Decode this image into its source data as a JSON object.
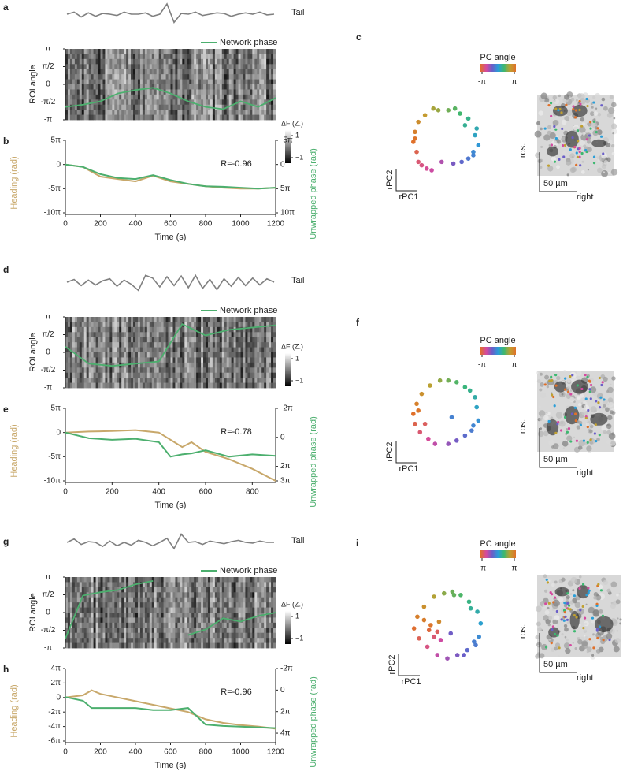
{
  "panel_labels": [
    "a",
    "b",
    "c",
    "d",
    "e",
    "f",
    "g",
    "h",
    "i"
  ],
  "images": [
    {
      "rostral": "ros.",
      "scale": "50 µm",
      "right": "right"
    },
    {
      "rostral": "ros.",
      "scale": "50 µm",
      "right": "right"
    },
    {
      "rostral": "ros.",
      "scale": "50 µm",
      "right": "right"
    }
  ],
  "chart_data": [
    {
      "type": "trace",
      "label": "Tail",
      "color": "#808080",
      "ylim": [
        -1.5,
        1.5
      ],
      "values": [
        0,
        0.3,
        -0.4,
        0.2,
        -0.3,
        0.1,
        0,
        -0.2,
        0.3,
        0,
        0,
        0.2,
        -0.3,
        0,
        1.5,
        -1.2,
        0.1,
        0,
        0.3,
        -0.2,
        0,
        0.2,
        0.1,
        -0.3,
        0,
        0.2,
        0,
        0.3,
        -0.1,
        0
      ]
    },
    {
      "type": "heatmap",
      "ylabel": "ROI angle",
      "legend": "Network phase",
      "phase_color": "#4caf6e",
      "ylim": [
        -3.1416,
        3.1416
      ],
      "yticks": [
        {
          "value": 3.1416,
          "label": "π"
        },
        {
          "value": 1.5708,
          "label": "π/2"
        },
        0,
        {
          "value": -1.5708,
          "label": "-π/2"
        },
        {
          "value": -3.1416,
          "label": "-π"
        }
      ],
      "x": [
        0,
        100,
        200,
        300,
        400,
        500,
        600,
        700,
        800,
        900,
        1000,
        1100,
        1200
      ],
      "phase": [
        -2.0,
        -1.8,
        -1.5,
        -0.8,
        -0.5,
        -0.3,
        -0.8,
        -1.5,
        -2.0,
        -2.2,
        -1.5,
        -2.0,
        -1.2
      ],
      "colorbar_label": "ΔF (Z.)",
      "clim": [
        -1.5,
        1.5
      ],
      "colorbar_ticks": [
        1,
        {
          "value": -1,
          "label": "−1"
        }
      ]
    },
    {
      "type": "line",
      "xlabel": "Time (s)",
      "ylabel": "Heading (rad)",
      "y2label": "Unwrapped phase (rad)",
      "annotation": "R=-0.96",
      "xlim": [
        0,
        1200
      ],
      "xticks": [
        0,
        200,
        400,
        600,
        800,
        1000,
        1200
      ],
      "ylim": [
        -31.416,
        15.708
      ],
      "yticks": [
        {
          "value": 15.708,
          "label": "5π"
        },
        0,
        {
          "value": -15.708,
          "label": "-5π"
        },
        {
          "value": -31.416,
          "label": "-10π"
        }
      ],
      "y2lim": [
        31.416,
        -15.708
      ],
      "y2ticks": [
        {
          "value": -15.708,
          "label": "-5π"
        },
        0,
        {
          "value": 15.708,
          "label": "5π"
        },
        {
          "value": 31.416,
          "label": "10π"
        }
      ],
      "x": [
        0,
        100,
        200,
        300,
        400,
        500,
        600,
        700,
        800,
        900,
        1000,
        1100,
        1200
      ],
      "series": [
        {
          "name": "Heading",
          "color": "#c8a86b",
          "values": [
            0,
            -1.57,
            -7.85,
            -9.42,
            -11.0,
            -7.23,
            -11.0,
            -12.57,
            -14.14,
            -15.08,
            -15.71,
            -15.71,
            -15.08
          ]
        },
        {
          "name": "Unwrapped phase",
          "color": "#4caf6e",
          "axis": "y2",
          "values": [
            0,
            1.57,
            6.28,
            8.8,
            9.42,
            6.91,
            10.05,
            12.57,
            14.14,
            14.45,
            15.08,
            15.71,
            15.08
          ]
        }
      ]
    },
    {
      "type": "scatter",
      "legend_title": "PC angle",
      "xlabel": "rPC1",
      "ylabel": "rPC2",
      "xlim": [
        -1.3,
        1.3
      ],
      "ylim": [
        -1.3,
        1.3
      ],
      "colormap": [
        "#e0702a",
        "#d44aa0",
        "#6a5ec8",
        "#2a9ed8",
        "#3cb870",
        "#c0a030",
        "#e0702a"
      ],
      "colorbar_ticks": [
        {
          "value": -3.1416,
          "label": "-π"
        },
        {
          "value": 3.1416,
          "label": "π"
        }
      ],
      "x": [
        0.9,
        1.0,
        0.85,
        0.95,
        0.7,
        0.45,
        0.3,
        0.1,
        -0.2,
        -0.35,
        -0.6,
        -0.8,
        -0.9,
        -0.95,
        -0.85,
        -0.8,
        -0.55,
        -0.4,
        -0.1,
        0.25,
        0.5,
        0.7,
        0.85,
        0.6,
        -0.7,
        -0.9
      ],
      "y": [
        0.2,
        -0.1,
        -0.4,
        0.4,
        0.7,
        0.85,
        1.0,
        0.95,
        0.95,
        1.0,
        0.8,
        0.6,
        0.3,
        0.0,
        -0.3,
        -0.6,
        -0.8,
        -0.85,
        -0.6,
        -0.65,
        -0.6,
        -0.5,
        -0.3,
        0.5,
        -0.7,
        0.1
      ]
    },
    {
      "type": "trace",
      "label": "Tail",
      "color": "#808080",
      "ylim": [
        -1.5,
        1.5
      ],
      "values": [
        0,
        0.4,
        -0.5,
        0.3,
        -0.4,
        0.2,
        0.5,
        -0.6,
        0.3,
        -0.3,
        -1.2,
        1.0,
        0.6,
        -0.7,
        0.8,
        -0.5,
        0.9,
        -0.8,
        1.0,
        -0.9,
        0.4,
        -1.1,
        0.5,
        -0.6,
        0.7,
        -0.5,
        0.6,
        -0.4,
        0.5,
        0
      ]
    },
    {
      "type": "heatmap",
      "ylabel": "ROI angle",
      "legend": "Network phase",
      "phase_color": "#4caf6e",
      "ylim": [
        -3.1416,
        3.1416
      ],
      "yticks": [
        {
          "value": 3.1416,
          "label": "π"
        },
        {
          "value": 1.5708,
          "label": "π/2"
        },
        0,
        {
          "value": -1.5708,
          "label": "-π/2"
        },
        {
          "value": -3.1416,
          "label": "-π"
        }
      ],
      "x": [
        0,
        100,
        200,
        300,
        400,
        500,
        600,
        700,
        800,
        900
      ],
      "phase": [
        0.5,
        -1.0,
        -1.2,
        -1.0,
        -0.8,
        2.5,
        1.5,
        2.0,
        2.2,
        2.4
      ],
      "colorbar_label": "ΔF (Z.)",
      "clim": [
        -1.5,
        1.5
      ],
      "colorbar_ticks": [
        1,
        {
          "value": -1,
          "label": "−1"
        }
      ]
    },
    {
      "type": "line",
      "xlabel": "Time (s)",
      "ylabel": "Heading (rad)",
      "y2label": "Unwrapped phase (rad)",
      "annotation": "R=-0.78",
      "xlim": [
        0,
        900
      ],
      "xticks": [
        0,
        200,
        400,
        600,
        800
      ],
      "ylim": [
        -31.416,
        15.708
      ],
      "yticks": [
        {
          "value": 15.708,
          "label": "5π"
        },
        0,
        {
          "value": -15.708,
          "label": "-5π"
        },
        {
          "value": -31.416,
          "label": "-10π"
        }
      ],
      "y2lim": [
        9.425,
        -6.283
      ],
      "y2ticks": [
        {
          "value": -6.283,
          "label": "-2π"
        },
        0,
        {
          "value": 6.283,
          "label": "2π"
        },
        {
          "value": 9.425,
          "label": "3π"
        }
      ],
      "x": [
        0,
        100,
        200,
        300,
        400,
        450,
        500,
        540,
        600,
        700,
        800,
        900
      ],
      "series": [
        {
          "name": "Heading",
          "color": "#c8a86b",
          "values": [
            0,
            0.63,
            0.94,
            1.57,
            0,
            -4.71,
            -9.42,
            -6.28,
            -12.57,
            -17.28,
            -23.56,
            -31.42
          ]
        },
        {
          "name": "Unwrapped phase",
          "color": "#4caf6e",
          "axis": "y2",
          "values": [
            -1.04,
            0.19,
            0.53,
            0.31,
            1.04,
            4.18,
            3.68,
            3.46,
            2.8,
            4.18,
            3.68,
            4.02
          ]
        }
      ]
    },
    {
      "type": "scatter",
      "legend_title": "PC angle",
      "xlabel": "rPC1",
      "ylabel": "rPC2",
      "xlim": [
        -1.3,
        1.3
      ],
      "ylim": [
        -1.3,
        1.3
      ],
      "colormap": [
        "#e0702a",
        "#d44aa0",
        "#6a5ec8",
        "#2a9ed8",
        "#3cb870",
        "#c0a030",
        "#e0702a"
      ],
      "colorbar_ticks": [
        {
          "value": -3.1416,
          "label": "-π"
        },
        {
          "value": 3.1416,
          "label": "π"
        }
      ],
      "x": [
        0.95,
        1.0,
        0.8,
        0.9,
        0.6,
        0.35,
        0.1,
        -0.15,
        -0.45,
        -0.7,
        -0.85,
        -0.95,
        -0.9,
        -0.75,
        -0.5,
        -0.3,
        0.1,
        0.35,
        0.6,
        0.85,
        -0.8,
        -0.6,
        0.75,
        0.2
      ],
      "y": [
        0.2,
        -0.2,
        -0.5,
        0.5,
        0.8,
        0.95,
        1.0,
        1.0,
        0.85,
        0.6,
        0.3,
        0.0,
        -0.3,
        -0.55,
        -0.75,
        -0.9,
        -0.9,
        -0.8,
        -0.65,
        -0.35,
        0.1,
        -0.3,
        0.7,
        -0.1
      ]
    },
    {
      "type": "trace",
      "label": "Tail",
      "color": "#808080",
      "ylim": [
        -1.5,
        1.5
      ],
      "values": [
        0,
        0.5,
        -0.3,
        0.1,
        0,
        -0.6,
        0.2,
        -0.5,
        0,
        -0.4,
        0.3,
        0,
        -0.5,
        0,
        0.6,
        -0.9,
        1.2,
        0,
        0.1,
        -0.3,
        0.2,
        0,
        -0.2,
        0.1,
        0.3,
        0,
        -0.1,
        0.2,
        0,
        0
      ]
    },
    {
      "type": "heatmap",
      "ylabel": "ROI angle",
      "legend": "Network phase",
      "phase_color": "#4caf6e",
      "ylim": [
        -3.1416,
        3.1416
      ],
      "yticks": [
        {
          "value": 3.1416,
          "label": "π"
        },
        {
          "value": 1.5708,
          "label": "π/2"
        },
        0,
        {
          "value": -1.5708,
          "label": "-π/2"
        },
        {
          "value": -3.1416,
          "label": "-π"
        }
      ],
      "x": [
        0,
        100,
        200,
        300,
        400,
        500,
        600,
        700,
        800,
        900,
        1000,
        1100,
        1200
      ],
      "phase": [
        -2.3,
        1.5,
        1.8,
        2.0,
        2.5,
        2.8,
        null,
        -2.0,
        -1.5,
        -0.5,
        -0.8,
        -0.3,
        0
      ],
      "colorbar_label": "ΔF (Z.)",
      "clim": [
        -1.5,
        1.5
      ],
      "colorbar_ticks": [
        1,
        {
          "value": -1,
          "label": "−1"
        }
      ]
    },
    {
      "type": "line",
      "xlabel": "Time (s)",
      "ylabel": "Heading (rad)",
      "y2label": "Unwrapped phase (rad)",
      "annotation": "R=-0.96",
      "xlim": [
        0,
        1200
      ],
      "xticks": [
        0,
        200,
        400,
        600,
        800,
        1000,
        1200
      ],
      "ylim": [
        -18.85,
        12.566
      ],
      "yticks": [
        {
          "value": 12.566,
          "label": "4π"
        },
        {
          "value": 6.283,
          "label": "2π"
        },
        0,
        {
          "value": -6.283,
          "label": "-2π"
        },
        {
          "value": -12.566,
          "label": "-4π"
        },
        {
          "value": -18.85,
          "label": "-6π"
        }
      ],
      "y2lim": [
        14.85,
        -6.283
      ],
      "y2ticks": [
        {
          "value": -6.283,
          "label": "-2π"
        },
        0,
        {
          "value": 6.283,
          "label": "2π"
        },
        {
          "value": 12.566,
          "label": "4π"
        }
      ],
      "x": [
        0,
        100,
        150,
        200,
        300,
        400,
        500,
        600,
        700,
        800,
        900,
        1000,
        1100,
        1200
      ],
      "series": [
        {
          "name": "Heading",
          "color": "#c8a86b",
          "values": [
            0,
            0.94,
            3.14,
            1.57,
            0,
            -1.57,
            -3.14,
            -4.71,
            -6.28,
            -9.42,
            -11.0,
            -11.94,
            -12.57,
            -13.51
          ]
        },
        {
          "name": "Unwrapped phase",
          "color": "#4caf6e",
          "axis": "y2",
          "values": [
            2.04,
            3.11,
            5.22,
            5.22,
            5.22,
            5.22,
            5.84,
            5.84,
            5.22,
            10.05,
            10.46,
            10.68,
            10.87,
            11.09
          ]
        }
      ]
    },
    {
      "type": "scatter",
      "legend_title": "PC angle",
      "xlabel": "rPC1",
      "ylabel": "rPC2",
      "xlim": [
        -1.3,
        1.3
      ],
      "ylim": [
        -1.3,
        1.3
      ],
      "colormap": [
        "#e0702a",
        "#d44aa0",
        "#6a5ec8",
        "#2a9ed8",
        "#3cb870",
        "#c0a030",
        "#e0702a"
      ],
      "colorbar_ticks": [
        {
          "value": -3.1416,
          "label": "-π"
        },
        {
          "value": 3.1416,
          "label": "π"
        }
      ],
      "x": [
        1.0,
        0.95,
        0.85,
        0.9,
        0.65,
        0.4,
        0.15,
        -0.1,
        -0.4,
        -0.7,
        -0.9,
        -1.0,
        -0.85,
        -0.6,
        -0.3,
        0.0,
        0.3,
        0.6,
        0.8,
        -0.5,
        -0.3,
        -0.2,
        -0.4,
        0.1,
        0.7,
        -0.7,
        -0.55,
        0.5,
        -0.25,
        0.2
      ],
      "y": [
        0.1,
        -0.3,
        -0.55,
        0.45,
        0.75,
        0.95,
        1.05,
        1.0,
        0.9,
        0.6,
        0.3,
        -0.05,
        -0.35,
        -0.6,
        -0.85,
        -0.95,
        -0.85,
        -0.7,
        -0.45,
        0.05,
        -0.15,
        -0.4,
        -0.3,
        -0.2,
        0.55,
        0.2,
        -0.1,
        -0.85,
        0.15,
        0.95
      ]
    }
  ]
}
